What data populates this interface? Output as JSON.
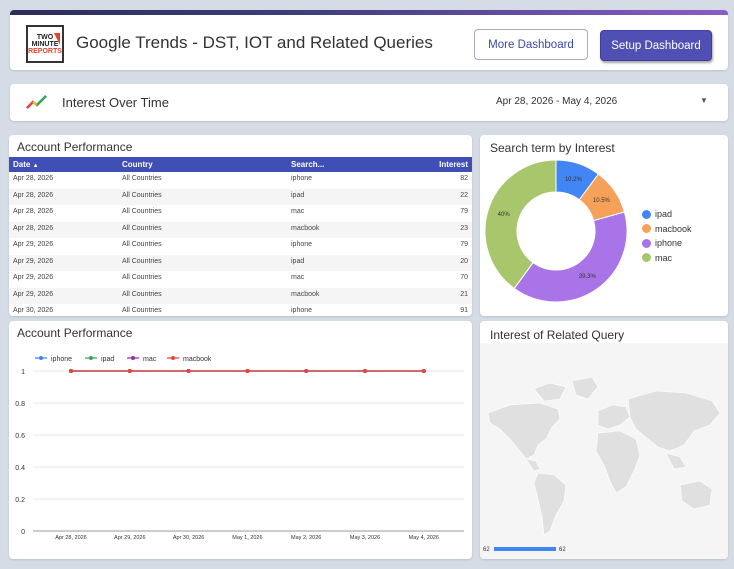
{
  "header": {
    "logo_line1": "TWO",
    "logo_line2": "MINUTE",
    "logo_line3": "REPORTS",
    "title": "Google Trends - DST, IOT and Related Queries",
    "more_button": "More Dashboard",
    "setup_button": "Setup Dashboard"
  },
  "iot": {
    "label": "Interest Over Time",
    "date_range": "Apr 28, 2026 - May 4, 2026",
    "icon": "trend-line-icon",
    "dropdown_icon": "caret-down-icon"
  },
  "table": {
    "title": "Account Performance",
    "columns": [
      "Date",
      "Country",
      "Search...",
      "Interest"
    ],
    "sort_icon": "sort-ascending-icon",
    "rows": [
      [
        "Apr 28, 2026",
        "All Countries",
        "iphone",
        "82"
      ],
      [
        "Apr 28, 2026",
        "All Countries",
        "ipad",
        "22"
      ],
      [
        "Apr 28, 2026",
        "All Countries",
        "mac",
        "79"
      ],
      [
        "Apr 28, 2026",
        "All Countries",
        "macbook",
        "23"
      ],
      [
        "Apr 29, 2026",
        "All Countries",
        "iphone",
        "79"
      ],
      [
        "Apr 29, 2026",
        "All Countries",
        "ipad",
        "20"
      ],
      [
        "Apr 29, 2026",
        "All Countries",
        "mac",
        "70"
      ],
      [
        "Apr 29, 2026",
        "All Countries",
        "macbook",
        "21"
      ],
      [
        "Apr 30, 2026",
        "All Countries",
        "iphone",
        "91"
      ]
    ]
  },
  "donut": {
    "title": "Search term by Interest",
    "chart_data": {
      "type": "pie",
      "categories": [
        "ipad",
        "macbook",
        "iphone",
        "mac"
      ],
      "values": [
        10.2,
        10.5,
        39.3,
        40
      ],
      "value_labels": [
        "10.2%",
        "10.5%",
        "39.3%",
        "40%"
      ],
      "colors": [
        "#4285f4",
        "#f6a15a",
        "#a974e8",
        "#a8c66c"
      ],
      "legend": "right"
    }
  },
  "line": {
    "title": "Account Performance",
    "chart_data": {
      "type": "line",
      "x": [
        "Apr 28, 2026",
        "Apr 29, 2026",
        "Apr 30, 2026",
        "May 1, 2026",
        "May 2, 2026",
        "May 3, 2026",
        "May 4, 2026"
      ],
      "series": [
        {
          "name": "iphone",
          "color": "#4285f4",
          "values": [
            1,
            1,
            1,
            1,
            1,
            1,
            1
          ]
        },
        {
          "name": "ipad",
          "color": "#34a853",
          "values": [
            1,
            1,
            1,
            1,
            1,
            1,
            1
          ]
        },
        {
          "name": "mac",
          "color": "#9c27b0",
          "values": [
            1,
            1,
            1,
            1,
            1,
            1,
            1
          ]
        },
        {
          "name": "macbook",
          "color": "#e8453c",
          "values": [
            1,
            1,
            1,
            1,
            1,
            1,
            1
          ]
        }
      ],
      "yticks": [
        "0",
        "0.2",
        "0.4",
        "0.6",
        "0.8",
        "1"
      ],
      "ylim": [
        0,
        1
      ],
      "grid": true,
      "legend": "top-left"
    }
  },
  "map": {
    "title": "Interest of Related Query",
    "scale_min": "62",
    "scale_max": "62",
    "scale_color": "#4285f4"
  }
}
